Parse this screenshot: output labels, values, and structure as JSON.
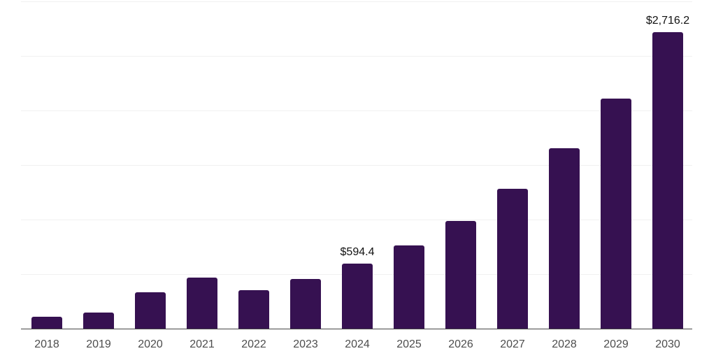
{
  "chart_data": {
    "type": "bar",
    "title": "",
    "xlabel": "",
    "ylabel": "",
    "categories": [
      "2018",
      "2019",
      "2020",
      "2021",
      "2022",
      "2023",
      "2024",
      "2025",
      "2026",
      "2027",
      "2028",
      "2029",
      "2030"
    ],
    "values": [
      110,
      148,
      335,
      465,
      353,
      455,
      594.4,
      766,
      990,
      1285,
      1652,
      2112,
      2716.2
    ],
    "value_labels": {
      "2024": "$594.4",
      "2030": "$2,716.2"
    },
    "ylim": [
      0,
      3000
    ],
    "gridline_step": 500,
    "grid": "horizontal",
    "legend": "none",
    "colors": {
      "bar": "#361151",
      "gridline": "#f0f0f0",
      "axis_line": "#454545",
      "tick_label": "#4d4d4d",
      "value_label": "#111111",
      "background": "#ffffff"
    }
  }
}
